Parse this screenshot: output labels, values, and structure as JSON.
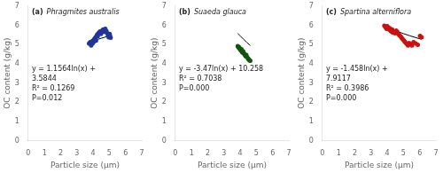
{
  "chart_data": [
    {
      "type": "scatter",
      "title": "(a)",
      "subtitle": "Phragmites australis",
      "annotations": [
        "y = 1.1564ln(x) +",
        "3.5844",
        "R² = 0.1269",
        "P=0.012"
      ],
      "xlabel": "Particle size (μm)",
      "ylabel": "OC content (g/kg)",
      "xlim": [
        0,
        7
      ],
      "ylim": [
        0,
        7
      ],
      "xticks": [
        0,
        1,
        2,
        3,
        4,
        5,
        6,
        7
      ],
      "yticks": [
        0,
        1,
        2,
        3,
        4,
        5,
        6,
        7
      ],
      "grid": false,
      "series": [
        {
          "type": "scatter",
          "color": "#223399",
          "marker": "circle",
          "x": [
            3.75,
            3.82,
            3.88,
            3.92,
            3.95,
            3.97,
            4.02,
            4.05,
            4.08,
            4.12,
            4.15,
            4.18,
            4.22,
            4.25,
            4.28,
            4.32,
            4.38,
            4.42,
            4.48,
            4.55,
            4.62,
            4.68,
            4.75,
            4.82,
            4.88,
            4.92,
            4.96,
            5.02,
            5.05,
            5.08
          ],
          "values": [
            5.05,
            5.12,
            4.95,
            5.08,
            5.18,
            5.05,
            5.22,
            5.15,
            5.3,
            5.25,
            5.38,
            5.2,
            5.45,
            5.52,
            5.42,
            5.58,
            5.62,
            5.68,
            5.55,
            5.72,
            5.78,
            5.65,
            5.82,
            5.7,
            5.58,
            5.48,
            5.38,
            5.55,
            5.42,
            5.35
          ]
        },
        {
          "type": "line",
          "color": "#000000",
          "line_style": "solid",
          "x": [
            3.75,
            3.9,
            4.1,
            4.3,
            4.5,
            4.7,
            4.9,
            5.08
          ],
          "values": [
            5.1129,
            5.1582,
            5.2161,
            5.2712,
            5.3237,
            5.374,
            5.4222,
            5.4639
          ]
        }
      ]
    },
    {
      "type": "scatter",
      "title": "(b)",
      "subtitle": "Suaeda glauca",
      "annotations": [
        "y = -3.47ln(x) + 10.258",
        "R² = 0.7038",
        "P=0.000"
      ],
      "xlabel": "Particle size (μm)",
      "ylabel": "OC content (g/kg)",
      "xlim": [
        0,
        7
      ],
      "ylim": [
        0,
        7
      ],
      "xticks": [
        0,
        1,
        2,
        3,
        4,
        5,
        6,
        7
      ],
      "yticks": [
        0,
        1,
        2,
        3,
        4,
        5,
        6,
        7
      ],
      "grid": false,
      "series": [
        {
          "type": "scatter",
          "color": "#115511",
          "marker": "circle",
          "x": [
            3.85,
            3.88,
            3.92,
            3.95,
            3.98,
            4.02,
            4.05,
            4.08,
            4.12,
            4.15,
            4.18,
            4.22,
            4.25,
            4.28,
            4.32,
            4.35,
            4.38,
            4.42,
            4.48,
            4.52,
            4.58,
            4.62
          ],
          "values": [
            4.92,
            4.88,
            4.82,
            4.85,
            4.78,
            4.72,
            4.68,
            4.75,
            4.62,
            4.58,
            4.65,
            4.55,
            4.52,
            4.48,
            4.42,
            4.38,
            4.45,
            4.35,
            4.28,
            4.22,
            4.18,
            4.15
          ]
        },
        {
          "type": "line",
          "color": "#000000",
          "line_style": "solid",
          "x": [
            3.85,
            4.0,
            4.2,
            4.4,
            4.62
          ],
          "values": [
            5.5802,
            5.4476,
            5.2783,
            5.1169,
            4.9476
          ]
        }
      ]
    },
    {
      "type": "scatter",
      "title": "(c)",
      "subtitle": "Spartina alterniflora",
      "annotations": [
        "y = -1.458ln(x) +",
        "7.9117",
        "R² = 0.3986",
        "P=0.000"
      ],
      "xlabel": "Particle size (μm)",
      "ylabel": "OC content (g/kg)",
      "xlim": [
        0,
        7
      ],
      "ylim": [
        0,
        7
      ],
      "xticks": [
        0,
        1,
        2,
        3,
        4,
        5,
        6,
        7
      ],
      "yticks": [
        0,
        1,
        2,
        3,
        4,
        5,
        6,
        7
      ],
      "grid": false,
      "series": [
        {
          "type": "scatter",
          "color": "#cc1111",
          "marker": "circle",
          "x": [
            3.82,
            3.88,
            3.92,
            3.96,
            4.0,
            4.05,
            4.08,
            4.12,
            4.15,
            4.2,
            4.25,
            4.3,
            4.35,
            4.42,
            4.48,
            4.55,
            4.62,
            4.68,
            4.75,
            4.82,
            4.88,
            4.95,
            5.02,
            5.08,
            5.15,
            5.22,
            5.28,
            5.35,
            5.42,
            5.52,
            5.62,
            5.75,
            5.88,
            6.02,
            6.12
          ],
          "values": [
            5.98,
            5.92,
            5.88,
            5.82,
            5.95,
            5.88,
            5.82,
            5.78,
            5.85,
            5.72,
            5.68,
            5.78,
            5.62,
            5.68,
            5.58,
            5.72,
            5.65,
            5.55,
            5.48,
            5.42,
            5.35,
            5.28,
            5.22,
            5.15,
            5.08,
            5.02,
            4.95,
            5.08,
            5.02,
            4.95,
            5.12,
            5.05,
            4.98,
            5.45,
            5.38
          ]
        },
        {
          "type": "line",
          "color": "#000000",
          "line_style": "solid",
          "x": [
            3.82,
            4.2,
            4.6,
            5.0,
            5.4,
            5.8,
            6.12
          ],
          "values": [
            5.9576,
            5.8193,
            5.6867,
            5.5651,
            5.4529,
            5.3487,
            5.2705
          ]
        }
      ]
    }
  ]
}
